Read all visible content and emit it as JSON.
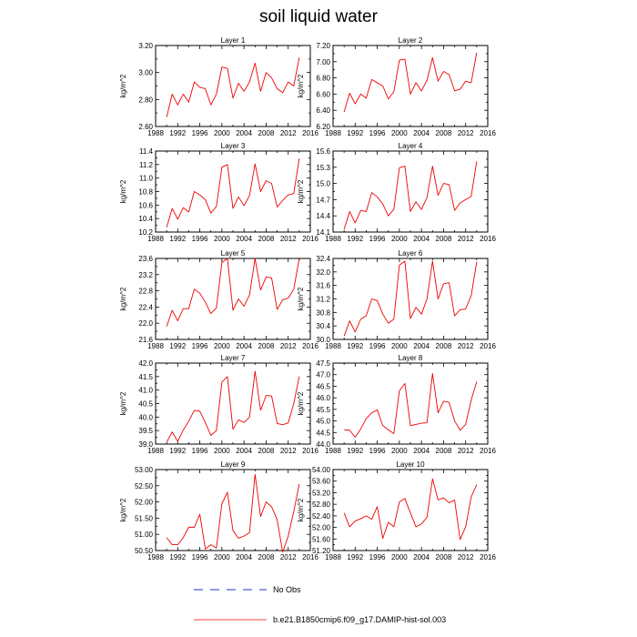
{
  "title": "soil liquid water",
  "chart_data": [
    {
      "type": "line",
      "title": "Layer 1",
      "xlabel": "",
      "ylabel": "kg/m^2",
      "xlim": [
        1988,
        2016
      ],
      "ylim": [
        2.6,
        3.2
      ],
      "xticks": [
        1988,
        1992,
        1996,
        2000,
        2004,
        2008,
        2012,
        2016
      ],
      "yticks": [
        2.6,
        2.8,
        3.0,
        3.2
      ],
      "ydecimals": 2,
      "x": [
        1990,
        1991,
        1992,
        1993,
        1994,
        1995,
        1996,
        1997,
        1998,
        1999,
        2000,
        2001,
        2002,
        2003,
        2004,
        2005,
        2006,
        2007,
        2008,
        2009,
        2010,
        2011,
        2012,
        2013,
        2014
      ],
      "series": [
        {
          "name": "b.e21.B1850cmip6.f09_g17.DAMIP-hist-sol.003",
          "values": [
            2.67,
            2.84,
            2.76,
            2.84,
            2.78,
            2.93,
            2.89,
            2.88,
            2.76,
            2.84,
            3.04,
            3.03,
            2.81,
            2.92,
            2.86,
            2.93,
            3.07,
            2.86,
            3.0,
            2.96,
            2.88,
            2.85,
            2.93,
            2.9,
            3.11
          ]
        }
      ]
    },
    {
      "type": "line",
      "title": "Layer 2",
      "xlabel": "",
      "ylabel": "kg/m^2",
      "xlim": [
        1988,
        2016
      ],
      "ylim": [
        6.2,
        7.2
      ],
      "xticks": [
        1988,
        1992,
        1996,
        2000,
        2004,
        2008,
        2012,
        2016
      ],
      "yticks": [
        6.2,
        6.4,
        6.6,
        6.8,
        7.0,
        7.2
      ],
      "ydecimals": 2,
      "x": [
        1990,
        1991,
        1992,
        1993,
        1994,
        1995,
        1996,
        1997,
        1998,
        1999,
        2000,
        2001,
        2002,
        2003,
        2004,
        2005,
        2006,
        2007,
        2008,
        2009,
        2010,
        2011,
        2012,
        2013,
        2014
      ],
      "series": [
        {
          "name": "b.e21.B1850cmip6.f09_g17.DAMIP-hist-sol.003",
          "values": [
            6.38,
            6.61,
            6.48,
            6.6,
            6.55,
            6.78,
            6.74,
            6.7,
            6.54,
            6.63,
            7.02,
            7.03,
            6.6,
            6.74,
            6.64,
            6.77,
            7.05,
            6.76,
            6.88,
            6.84,
            6.64,
            6.66,
            6.76,
            6.74,
            7.11
          ]
        }
      ]
    },
    {
      "type": "line",
      "title": "Layer 3",
      "xlabel": "",
      "ylabel": "kg/m^2",
      "xlim": [
        1988,
        2016
      ],
      "ylim": [
        10.2,
        11.4
      ],
      "xticks": [
        1988,
        1992,
        1996,
        2000,
        2004,
        2008,
        2012,
        2016
      ],
      "yticks": [
        10.2,
        10.4,
        10.6,
        10.8,
        11.0,
        11.2,
        11.4
      ],
      "ydecimals": 1,
      "x": [
        1990,
        1991,
        1992,
        1993,
        1994,
        1995,
        1996,
        1997,
        1998,
        1999,
        2000,
        2001,
        2002,
        2003,
        2004,
        2005,
        2006,
        2007,
        2008,
        2009,
        2010,
        2011,
        2012,
        2013,
        2014
      ],
      "series": [
        {
          "name": "b.e21.B1850cmip6.f09_g17.DAMIP-hist-sol.003",
          "values": [
            10.27,
            10.55,
            10.39,
            10.56,
            10.5,
            10.8,
            10.75,
            10.68,
            10.48,
            10.58,
            11.16,
            11.2,
            10.55,
            10.72,
            10.59,
            10.74,
            11.21,
            10.8,
            10.96,
            10.92,
            10.57,
            10.67,
            10.75,
            10.77,
            11.29
          ]
        }
      ]
    },
    {
      "type": "line",
      "title": "Layer 4",
      "xlabel": "",
      "ylabel": "kg/m^2",
      "xlim": [
        1988,
        2016
      ],
      "ylim": [
        14.1,
        15.6
      ],
      "xticks": [
        1988,
        1992,
        1996,
        2000,
        2004,
        2008,
        2012,
        2016
      ],
      "yticks": [
        14.1,
        14.4,
        14.7,
        15.0,
        15.3,
        15.6
      ],
      "ydecimals": 1,
      "x": [
        1990,
        1991,
        1992,
        1993,
        1994,
        1995,
        1996,
        1997,
        1998,
        1999,
        2000,
        2001,
        2002,
        2003,
        2004,
        2005,
        2006,
        2007,
        2008,
        2009,
        2010,
        2011,
        2012,
        2013,
        2014
      ],
      "series": [
        {
          "name": "b.e21.B1850cmip6.f09_g17.DAMIP-hist-sol.003",
          "values": [
            14.15,
            14.48,
            14.27,
            14.5,
            14.48,
            14.83,
            14.75,
            14.62,
            14.4,
            14.52,
            15.29,
            15.32,
            14.48,
            14.66,
            14.52,
            14.74,
            15.32,
            14.78,
            15.0,
            14.98,
            14.5,
            14.64,
            14.7,
            14.76,
            15.41
          ]
        }
      ]
    },
    {
      "type": "line",
      "title": "Layer 5",
      "xlabel": "",
      "ylabel": "kg/m^2",
      "xlim": [
        1988,
        2016
      ],
      "ylim": [
        21.6,
        23.6
      ],
      "xticks": [
        1988,
        1992,
        1996,
        2000,
        2004,
        2008,
        2012,
        2016
      ],
      "yticks": [
        21.6,
        22.0,
        22.4,
        22.8,
        23.2,
        23.6
      ],
      "ydecimals": 1,
      "x": [
        1990,
        1991,
        1992,
        1993,
        1994,
        1995,
        1996,
        1997,
        1998,
        1999,
        2000,
        2001,
        2002,
        2003,
        2004,
        2005,
        2006,
        2007,
        2008,
        2009,
        2010,
        2011,
        2012,
        2013,
        2014
      ],
      "series": [
        {
          "name": "b.e21.B1850cmip6.f09_g17.DAMIP-hist-sol.003",
          "values": [
            21.92,
            22.32,
            22.06,
            22.36,
            22.36,
            22.84,
            22.74,
            22.52,
            22.24,
            22.38,
            23.5,
            23.6,
            22.32,
            22.6,
            22.42,
            22.7,
            23.6,
            22.82,
            23.14,
            23.12,
            22.34,
            22.58,
            22.62,
            22.84,
            23.6
          ]
        }
      ]
    },
    {
      "type": "line",
      "title": "Layer 6",
      "xlabel": "",
      "ylabel": "kg/m^2",
      "xlim": [
        1988,
        2016
      ],
      "ylim": [
        30.0,
        32.4
      ],
      "xticks": [
        1988,
        1992,
        1996,
        2000,
        2004,
        2008,
        2012,
        2016
      ],
      "yticks": [
        30.0,
        30.4,
        30.8,
        31.2,
        31.6,
        32.0,
        32.4
      ],
      "ydecimals": 1,
      "x": [
        1990,
        1991,
        1992,
        1993,
        1994,
        1995,
        1996,
        1997,
        1998,
        1999,
        2000,
        2001,
        2002,
        2003,
        2004,
        2005,
        2006,
        2007,
        2008,
        2009,
        2010,
        2011,
        2012,
        2013,
        2014
      ],
      "series": [
        {
          "name": "b.e21.B1850cmip6.f09_g17.DAMIP-hist-sol.003",
          "values": [
            30.1,
            30.55,
            30.22,
            30.6,
            30.7,
            31.2,
            31.15,
            30.75,
            30.48,
            30.6,
            32.2,
            32.32,
            30.62,
            30.95,
            30.75,
            31.2,
            32.32,
            31.2,
            31.65,
            31.68,
            30.7,
            30.88,
            30.9,
            31.3,
            32.3
          ]
        }
      ]
    },
    {
      "type": "line",
      "title": "Layer 7",
      "xlabel": "",
      "ylabel": "kg/m^2",
      "xlim": [
        1988,
        2016
      ],
      "ylim": [
        39.0,
        42.0
      ],
      "xticks": [
        1988,
        1992,
        1996,
        2000,
        2004,
        2008,
        2012,
        2016
      ],
      "yticks": [
        39.0,
        39.5,
        40.0,
        40.5,
        41.0,
        41.5,
        42.0
      ],
      "ydecimals": 1,
      "x": [
        1990,
        1991,
        1992,
        1993,
        1994,
        1995,
        1996,
        1997,
        1998,
        1999,
        2000,
        2001,
        2002,
        2003,
        2004,
        2005,
        2006,
        2007,
        2008,
        2009,
        2010,
        2011,
        2012,
        2013,
        2014
      ],
      "series": [
        {
          "name": "b.e21.B1850cmip6.f09_g17.DAMIP-hist-sol.003",
          "values": [
            39.07,
            39.45,
            39.1,
            39.52,
            39.85,
            40.25,
            40.22,
            39.8,
            39.32,
            39.5,
            41.3,
            41.5,
            39.55,
            39.9,
            39.8,
            40.0,
            41.7,
            40.25,
            40.8,
            40.78,
            39.76,
            39.72,
            39.78,
            40.5,
            41.5
          ]
        }
      ]
    },
    {
      "type": "line",
      "title": "Layer 8",
      "xlabel": "",
      "ylabel": "kg/m^2",
      "xlim": [
        1988,
        2016
      ],
      "ylim": [
        44.0,
        47.5
      ],
      "xticks": [
        1988,
        1992,
        1996,
        2000,
        2004,
        2008,
        2012,
        2016
      ],
      "yticks": [
        44.0,
        44.5,
        45.0,
        45.5,
        46.0,
        46.5,
        47.0,
        47.5
      ],
      "ydecimals": 1,
      "x": [
        1990,
        1991,
        1992,
        1993,
        1994,
        1995,
        1996,
        1997,
        1998,
        1999,
        2000,
        2001,
        2002,
        2003,
        2004,
        2005,
        2006,
        2007,
        2008,
        2009,
        2010,
        2011,
        2012,
        2013,
        2014
      ],
      "series": [
        {
          "name": "b.e21.B1850cmip6.f09_g17.DAMIP-hist-sol.003",
          "values": [
            44.62,
            44.6,
            44.3,
            44.65,
            45.1,
            45.35,
            45.48,
            44.8,
            44.62,
            44.45,
            46.3,
            46.62,
            44.8,
            44.85,
            44.9,
            44.92,
            47.05,
            45.35,
            45.85,
            45.8,
            45.0,
            44.6,
            44.85,
            45.9,
            46.7
          ]
        }
      ]
    },
    {
      "type": "line",
      "title": "Layer 9",
      "xlabel": "",
      "ylabel": "kg/m^2",
      "xlim": [
        1988,
        2016
      ],
      "ylim": [
        50.5,
        53.0
      ],
      "xticks": [
        1988,
        1992,
        1996,
        2000,
        2004,
        2008,
        2012,
        2016
      ],
      "yticks": [
        50.5,
        51.0,
        51.5,
        52.0,
        52.5,
        53.0
      ],
      "ydecimals": 2,
      "x": [
        1990,
        1991,
        1992,
        1993,
        1994,
        1995,
        1996,
        1997,
        1998,
        1999,
        2000,
        2001,
        2002,
        2003,
        2004,
        2005,
        2006,
        2007,
        2008,
        2009,
        2010,
        2011,
        2012,
        2013,
        2014
      ],
      "series": [
        {
          "name": "b.e21.B1850cmip6.f09_g17.DAMIP-hist-sol.003",
          "values": [
            50.9,
            50.68,
            50.68,
            50.9,
            51.22,
            51.22,
            51.62,
            50.55,
            50.68,
            50.58,
            51.95,
            52.3,
            51.12,
            50.88,
            50.95,
            51.05,
            52.85,
            51.55,
            52.0,
            51.85,
            51.45,
            50.45,
            50.95,
            51.7,
            52.55
          ]
        }
      ]
    },
    {
      "type": "line",
      "title": "Layer 10",
      "xlabel": "",
      "ylabel": "kg/m^2",
      "xlim": [
        1988,
        2016
      ],
      "ylim": [
        51.2,
        54.0
      ],
      "xticks": [
        1988,
        1992,
        1996,
        2000,
        2004,
        2008,
        2012,
        2016
      ],
      "yticks": [
        51.2,
        51.6,
        52.0,
        52.4,
        52.8,
        53.2,
        53.6,
        54.0
      ],
      "ydecimals": 2,
      "x": [
        1990,
        1991,
        1992,
        1993,
        1994,
        1995,
        1996,
        1997,
        1998,
        1999,
        2000,
        2001,
        2002,
        2003,
        2004,
        2005,
        2006,
        2007,
        2008,
        2009,
        2010,
        2011,
        2012,
        2013,
        2014
      ],
      "series": [
        {
          "name": "b.e21.B1850cmip6.f09_g17.DAMIP-hist-sol.003",
          "values": [
            52.5,
            52.02,
            52.22,
            52.3,
            52.4,
            52.28,
            52.72,
            51.62,
            52.18,
            52.02,
            52.88,
            53.0,
            52.5,
            52.02,
            52.12,
            52.35,
            53.68,
            52.95,
            53.02,
            52.85,
            52.95,
            51.58,
            52.02,
            53.05,
            53.48
          ]
        }
      ]
    }
  ],
  "legend": {
    "placement": "bottom",
    "items": [
      {
        "label": "No Obs",
        "color": "#2233cc",
        "dash": "dashed"
      },
      {
        "label": "b.e21.B1850cmip6.f09_g17.DAMIP-hist-sol.003",
        "color": "#ee0000",
        "dash": "solid"
      }
    ]
  },
  "line_color": "#ee0000"
}
